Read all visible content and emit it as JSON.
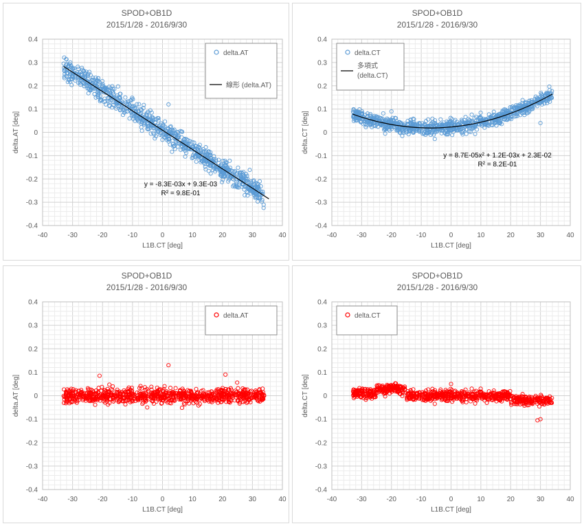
{
  "chart_data": [
    {
      "type": "scatter",
      "title": "SPOD+OB1D",
      "subtitle": "2015/1/28 - 2016/9/30",
      "xlabel": "L1B.CT [deg]",
      "ylabel": "delta.AT [deg]",
      "xlim": [
        -40,
        40
      ],
      "ylim": [
        -0.4,
        0.4
      ],
      "xticks": [
        "-40",
        "-30",
        "-20",
        "-10",
        "0",
        "10",
        "20",
        "30",
        "40"
      ],
      "yticks": [
        "0.4",
        "0.3",
        "0.2",
        "0.1",
        "0",
        "-0.1",
        "-0.2",
        "-0.3",
        "-0.4"
      ],
      "grid": true,
      "legend_position": "top-right",
      "series": [
        {
          "name": "delta.AT",
          "color": "#5b9bd5",
          "marker": "circle-open",
          "x_range": [
            -33,
            34
          ],
          "model": {
            "kind": "linear",
            "a": -0.0083,
            "b": 0.0093
          },
          "scatter_spread": 0.045,
          "outliers": [
            {
              "x": 2,
              "y": 0.12
            }
          ]
        },
        {
          "name": "線形 (delta.AT)",
          "color": "#000000",
          "type": "trendline",
          "fit": "linear",
          "x_range": [
            -33,
            35.5
          ]
        }
      ],
      "annotations": [
        "y = -8.3E-03x + 9.3E-03",
        "R² = 9.8E-01"
      ]
    },
    {
      "type": "scatter",
      "title": "SPOD+OB1D",
      "subtitle": "2015/1/28 - 2016/9/30",
      "xlabel": "L1B.CT [deg]",
      "ylabel": "delta.CT [deg]",
      "xlim": [
        -40,
        40
      ],
      "ylim": [
        -0.4,
        0.4
      ],
      "xticks": [
        "-40",
        "-30",
        "-20",
        "-10",
        "0",
        "10",
        "20",
        "30",
        "40"
      ],
      "yticks": [
        "0.4",
        "0.3",
        "0.2",
        "0.1",
        "0",
        "-0.1",
        "-0.2",
        "-0.3",
        "-0.4"
      ],
      "grid": true,
      "legend_position": "top-left",
      "series": [
        {
          "name": "delta.CT",
          "color": "#5b9bd5",
          "marker": "circle-open",
          "x_range": [
            -33,
            34
          ],
          "model": {
            "kind": "poly2",
            "a": 8.7e-05,
            "b": 0.0012,
            "c": 0.023
          },
          "scatter_spread": 0.03,
          "outliers": [
            {
              "x": -20,
              "y": 0.09
            },
            {
              "x": 30,
              "y": 0.04
            }
          ]
        },
        {
          "name": "多項式",
          "name_line2": "(delta.CT)",
          "color": "#000000",
          "type": "trendline",
          "fit": "poly2",
          "x_range": [
            -33,
            34
          ]
        }
      ],
      "annotations": [
        "y = 8.7E-05x² + 1.2E-03x + 2.3E-02",
        "R² = 8.2E-01"
      ]
    },
    {
      "type": "scatter",
      "title": "SPOD+OB1D",
      "subtitle": "2015/1/28 - 2016/9/30",
      "xlabel": "L1B.CT [deg]",
      "ylabel": "delta.AT [deg]",
      "xlim": [
        -40,
        40
      ],
      "ylim": [
        -0.4,
        0.4
      ],
      "xticks": [
        "-40",
        "-30",
        "-20",
        "-10",
        "0",
        "10",
        "20",
        "30",
        "40"
      ],
      "yticks": [
        "0.4",
        "0.3",
        "0.2",
        "0.1",
        "0",
        "-0.1",
        "-0.2",
        "-0.3",
        "-0.4"
      ],
      "grid": true,
      "legend_position": "top-right",
      "series": [
        {
          "name": "delta.AT",
          "color": "#ff0000",
          "marker": "circle-open",
          "x_range": [
            -33,
            34
          ],
          "model": {
            "kind": "constant",
            "c": 0.0
          },
          "scatter_spread": 0.03,
          "outliers": [
            {
              "x": 2,
              "y": 0.13
            },
            {
              "x": -21,
              "y": 0.085
            },
            {
              "x": 21,
              "y": 0.09
            }
          ]
        }
      ],
      "annotations": []
    },
    {
      "type": "scatter",
      "title": "SPOD+OB1D",
      "subtitle": "2015/1/28 - 2016/9/30",
      "xlabel": "L1B.CT [deg]",
      "ylabel": "delta.CT [deg]",
      "xlim": [
        -40,
        40
      ],
      "ylim": [
        -0.4,
        0.4
      ],
      "xticks": [
        "-40",
        "-30",
        "-20",
        "-10",
        "0",
        "10",
        "20",
        "30",
        "40"
      ],
      "yticks": [
        "0.4",
        "0.3",
        "0.2",
        "0.1",
        "0",
        "-0.1",
        "-0.2",
        "-0.3",
        "-0.4"
      ],
      "grid": true,
      "legend_position": "top-left",
      "series": [
        {
          "name": "delta.CT",
          "color": "#ff0000",
          "marker": "circle-open",
          "x_range": [
            -33,
            34
          ],
          "model": {
            "kind": "residual"
          },
          "scatter_spread": 0.022,
          "outliers": [
            {
              "x": 29,
              "y": -0.105
            },
            {
              "x": 30,
              "y": -0.1
            },
            {
              "x": 0,
              "y": 0.05
            }
          ]
        }
      ],
      "annotations": []
    }
  ]
}
